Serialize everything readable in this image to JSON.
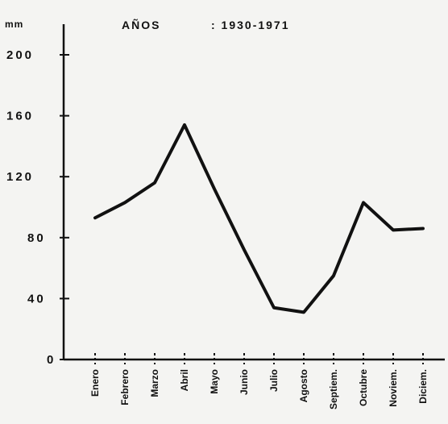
{
  "chart_data": {
    "type": "line",
    "title": "AÑOS",
    "subtitle": ": 1930-1971",
    "ylabel": "mm",
    "xlabel": "",
    "categories": [
      "Enero",
      "Febrero",
      "Marzo",
      "Abril",
      "Mayo",
      "Junio",
      "Julio",
      "Agosto",
      "Septiem.",
      "Octubre",
      "Noviem.",
      "Diciem."
    ],
    "values": [
      93,
      103,
      116,
      154,
      112,
      72,
      34,
      31,
      55,
      103,
      85,
      86
    ],
    "yticks": [
      "0",
      "40",
      "80",
      "120",
      "160",
      "200"
    ],
    "ylim": [
      0,
      200
    ],
    "grid": false,
    "line_color": "#111111"
  }
}
